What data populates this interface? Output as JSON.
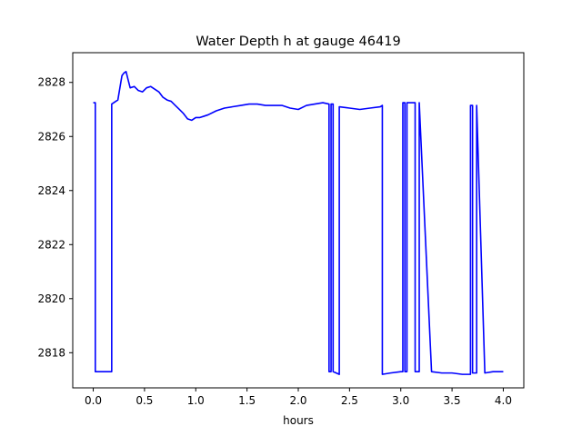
{
  "chart_data": {
    "type": "line",
    "title": "Water Depth h at gauge 46419",
    "xlabel": "hours",
    "ylabel": "",
    "xlim": [
      -0.2,
      4.2
    ],
    "ylim": [
      2816.7,
      2829.1
    ],
    "xticks": [
      0.0,
      0.5,
      1.0,
      1.5,
      2.0,
      2.5,
      3.0,
      3.5,
      4.0
    ],
    "xtick_labels": [
      "0.0",
      "0.5",
      "1.0",
      "1.5",
      "2.0",
      "2.5",
      "3.0",
      "3.5",
      "4.0"
    ],
    "yticks": [
      2818,
      2820,
      2822,
      2824,
      2826,
      2828
    ],
    "ytick_labels": [
      "2818",
      "2820",
      "2822",
      "2824",
      "2826",
      "2828"
    ],
    "grid": false,
    "series": [
      {
        "color": "#0000ff",
        "x": [
          0.0,
          0.02,
          0.02,
          0.18,
          0.18,
          0.24,
          0.26,
          0.28,
          0.3,
          0.32,
          0.34,
          0.36,
          0.4,
          0.44,
          0.48,
          0.52,
          0.56,
          0.6,
          0.64,
          0.68,
          0.72,
          0.76,
          0.8,
          0.84,
          0.88,
          0.92,
          0.96,
          1.0,
          1.04,
          1.08,
          1.12,
          1.2,
          1.28,
          1.36,
          1.44,
          1.52,
          1.6,
          1.68,
          1.76,
          1.84,
          1.92,
          2.0,
          2.08,
          2.16,
          2.24,
          2.3,
          2.3,
          2.32,
          2.32,
          2.34,
          2.34,
          2.4,
          2.4,
          2.5,
          2.6,
          2.7,
          2.8,
          2.82,
          2.82,
          2.9,
          3.0,
          3.02,
          3.02,
          3.04,
          3.04,
          3.06,
          3.06,
          3.14,
          3.14,
          3.18,
          3.18,
          3.3,
          3.4,
          3.5,
          3.6,
          3.68,
          3.68,
          3.7,
          3.7,
          3.74,
          3.74,
          3.82,
          3.9,
          4.0
        ],
        "y": [
          2827.25,
          2827.25,
          2817.3,
          2817.3,
          2827.2,
          2827.35,
          2827.8,
          2828.25,
          2828.35,
          2828.4,
          2828.1,
          2827.8,
          2827.85,
          2827.7,
          2827.65,
          2827.8,
          2827.85,
          2827.75,
          2827.65,
          2827.45,
          2827.35,
          2827.3,
          2827.15,
          2827.0,
          2826.85,
          2826.65,
          2826.6,
          2826.7,
          2826.7,
          2826.75,
          2826.8,
          2826.95,
          2827.05,
          2827.1,
          2827.15,
          2827.2,
          2827.2,
          2827.15,
          2827.15,
          2827.15,
          2827.05,
          2827.0,
          2827.15,
          2827.2,
          2827.25,
          2827.2,
          2817.3,
          2817.3,
          2827.2,
          2827.2,
          2817.3,
          2817.2,
          2827.1,
          2827.05,
          2827.0,
          2827.05,
          2827.1,
          2827.15,
          2817.2,
          2817.25,
          2817.3,
          2817.3,
          2827.25,
          2827.25,
          2817.3,
          2817.3,
          2827.25,
          2827.25,
          2817.3,
          2817.3,
          2827.25,
          2817.3,
          2817.25,
          2817.25,
          2817.2,
          2817.2,
          2827.15,
          2827.15,
          2817.25,
          2817.25,
          2827.15,
          2817.25,
          2817.3,
          2817.3
        ]
      }
    ]
  }
}
